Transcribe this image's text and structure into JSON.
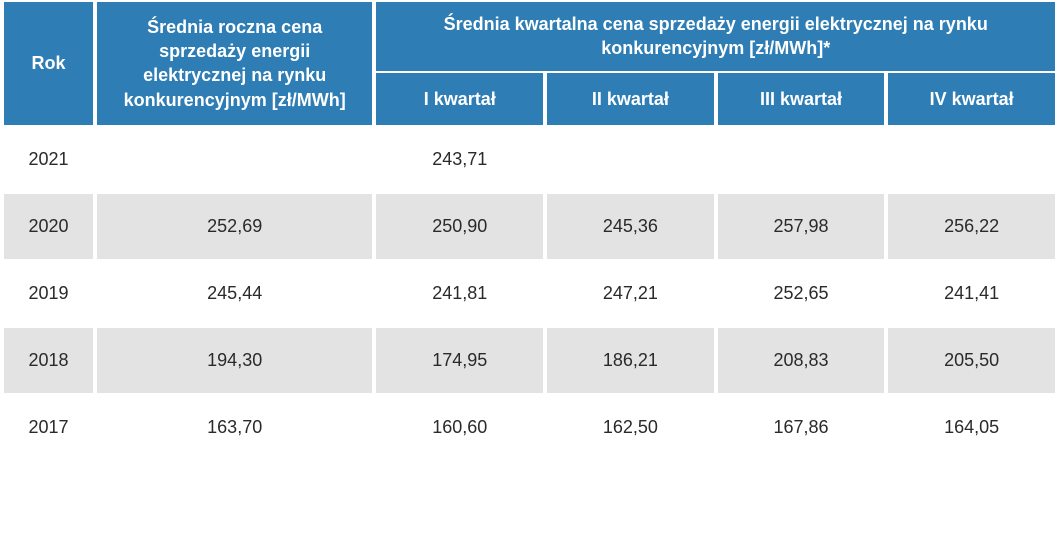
{
  "table": {
    "header": {
      "year": "Rok",
      "annual": "Średnia roczna cena sprzedaży energii elektrycznej na rynku konkurencyjnym [zł/MWh]",
      "quarterly_group": "Średnia kwartalna cena sprzedaży energii elektrycznej na rynku konkurencyjnym [zł/MWh]*",
      "q1": "I kwartał",
      "q2": "II kwartał",
      "q3": "III kwartał",
      "q4": "IV kwartał"
    },
    "rows": [
      {
        "year": "2021",
        "annual": "",
        "q1": "243,71",
        "q2": "",
        "q3": "",
        "q4": ""
      },
      {
        "year": "2020",
        "annual": "252,69",
        "q1": "250,90",
        "q2": "245,36",
        "q3": "257,98",
        "q4": "256,22"
      },
      {
        "year": "2019",
        "annual": "245,44",
        "q1": "241,81",
        "q2": "247,21",
        "q3": "252,65",
        "q4": "241,41"
      },
      {
        "year": "2018",
        "annual": "194,30",
        "q1": "174,95",
        "q2": "186,21",
        "q3": "208,83",
        "q4": "205,50"
      },
      {
        "year": "2017",
        "annual": "163,70",
        "q1": "160,60",
        "q2": "162,50",
        "q3": "167,86",
        "q4": "164,05"
      }
    ],
    "styling": {
      "header_bg": "#2e7db4",
      "header_text": "#ffffff",
      "row_alt_bg": "#e3e3e3",
      "row_bg": "#ffffff",
      "text_color": "#2a2a2a",
      "font_size_header": 18,
      "font_size_body": 18,
      "column_widths": {
        "year": 90,
        "annual": 280,
        "quarter": 170
      }
    }
  }
}
